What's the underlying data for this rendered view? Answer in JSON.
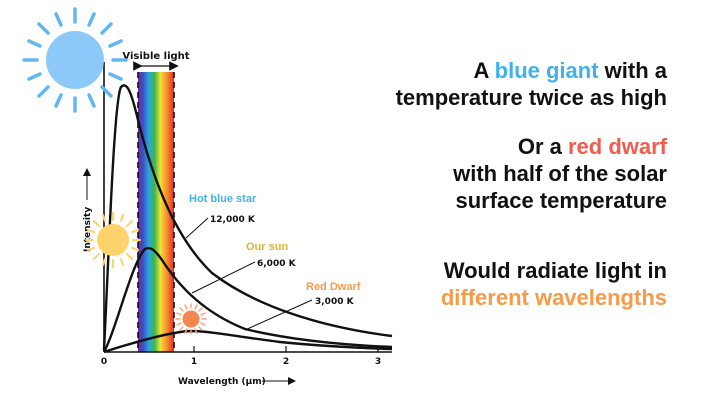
{
  "diagram": {
    "visible_light_label": "Visible light",
    "y_axis_label": "Intensity",
    "x_axis_label": "Wavelength (µm)",
    "x_ticks": [
      "0",
      "1",
      "2",
      "3"
    ],
    "curves": [
      {
        "name": "Hot blue star",
        "temperature": "12,000 K",
        "name_color": "#3fb2ee"
      },
      {
        "name": "Our sun",
        "temperature": "6,000 K",
        "name_color": "#e0b23a"
      },
      {
        "name": "Red Dwarf",
        "temperature": "3,000 K",
        "name_color": "#f79a4a"
      }
    ]
  },
  "text": {
    "line1_pre": "A ",
    "line1_accent": "blue giant",
    "line1_post": " with a",
    "line2": "temperature twice as high",
    "line3_pre": "Or a ",
    "line3_accent": "red dwarf",
    "line4": "with half of the solar",
    "line5": "surface temperature",
    "line6": "Would radiate light in",
    "line7": "different wavelengths"
  },
  "colors": {
    "blue_accent": "#3fb2ee",
    "red_accent": "#f25c4e",
    "orange_accent": "#f79a4a",
    "blue_sun": "#8cc8f8",
    "yellow_sun": "#ffd36b",
    "red_sun": "#f4874f"
  },
  "icons": [
    "blue-sun-icon",
    "yellow-sun-icon",
    "red-sun-icon"
  ]
}
